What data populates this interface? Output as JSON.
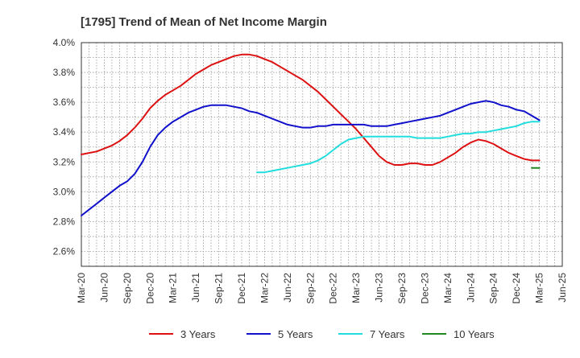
{
  "chart_data": {
    "type": "line",
    "title": "[1795]  Trend of Mean of Net Income Margin",
    "xlabel": "",
    "ylabel": "",
    "x_ticks": [
      "Mar-20",
      "Jun-20",
      "Sep-20",
      "Dec-20",
      "Mar-21",
      "Jun-21",
      "Sep-21",
      "Dec-21",
      "Mar-22",
      "Jun-22",
      "Sep-22",
      "Dec-22",
      "Mar-23",
      "Jun-23",
      "Sep-23",
      "Dec-23",
      "Mar-24",
      "Jun-24",
      "Sep-24",
      "Dec-24",
      "Mar-25",
      "Jun-25"
    ],
    "y_ticks": [
      "2.6%",
      "2.8%",
      "3.0%",
      "3.2%",
      "3.4%",
      "3.6%",
      "3.8%",
      "4.0%"
    ],
    "y_tick_values": [
      2.6,
      2.8,
      3.0,
      3.2,
      3.4,
      3.6,
      3.8,
      4.0
    ],
    "ylim": [
      2.5,
      4.0
    ],
    "grid": true,
    "legend_position": "bottom",
    "series": [
      {
        "name": "3 Years",
        "color": "#dd1111",
        "x": [
          "Mar-20",
          "Apr-20",
          "May-20",
          "Jun-20",
          "Jul-20",
          "Aug-20",
          "Sep-20",
          "Oct-20",
          "Nov-20",
          "Dec-20",
          "Jan-21",
          "Feb-21",
          "Mar-21",
          "Apr-21",
          "May-21",
          "Jun-21",
          "Jul-21",
          "Aug-21",
          "Sep-21",
          "Oct-21",
          "Nov-21",
          "Dec-21",
          "Jan-22",
          "Feb-22",
          "Mar-22",
          "Apr-22",
          "May-22",
          "Jun-22",
          "Jul-22",
          "Aug-22",
          "Sep-22",
          "Oct-22",
          "Nov-22",
          "Dec-22",
          "Jan-23",
          "Feb-23",
          "Mar-23",
          "Apr-23",
          "May-23",
          "Jun-23",
          "Jul-23",
          "Aug-23",
          "Sep-23",
          "Oct-23",
          "Nov-23",
          "Dec-23",
          "Jan-24",
          "Feb-24",
          "Mar-24",
          "Apr-24",
          "May-24",
          "Jun-24",
          "Jul-24",
          "Aug-24",
          "Sep-24",
          "Oct-24",
          "Nov-24",
          "Dec-24",
          "Jan-25",
          "Feb-25",
          "Mar-25"
        ],
        "values": [
          3.25,
          3.26,
          3.27,
          3.29,
          3.31,
          3.34,
          3.38,
          3.43,
          3.49,
          3.56,
          3.61,
          3.65,
          3.68,
          3.71,
          3.75,
          3.79,
          3.82,
          3.85,
          3.87,
          3.89,
          3.91,
          3.92,
          3.92,
          3.91,
          3.89,
          3.87,
          3.84,
          3.81,
          3.78,
          3.75,
          3.71,
          3.67,
          3.62,
          3.57,
          3.52,
          3.47,
          3.42,
          3.36,
          3.3,
          3.24,
          3.2,
          3.18,
          3.18,
          3.19,
          3.19,
          3.18,
          3.18,
          3.2,
          3.23,
          3.26,
          3.3,
          3.33,
          3.35,
          3.34,
          3.32,
          3.29,
          3.26,
          3.24,
          3.22,
          3.21,
          3.21
        ]
      },
      {
        "name": "5 Years",
        "color": "#1111cc",
        "x": [
          "Mar-20",
          "Apr-20",
          "May-20",
          "Jun-20",
          "Jul-20",
          "Aug-20",
          "Sep-20",
          "Oct-20",
          "Nov-20",
          "Dec-20",
          "Jan-21",
          "Feb-21",
          "Mar-21",
          "Apr-21",
          "May-21",
          "Jun-21",
          "Jul-21",
          "Aug-21",
          "Sep-21",
          "Oct-21",
          "Nov-21",
          "Dec-21",
          "Jan-22",
          "Feb-22",
          "Mar-22",
          "Apr-22",
          "May-22",
          "Jun-22",
          "Jul-22",
          "Aug-22",
          "Sep-22",
          "Oct-22",
          "Nov-22",
          "Dec-22",
          "Jan-23",
          "Feb-23",
          "Mar-23",
          "Apr-23",
          "May-23",
          "Jun-23",
          "Jul-23",
          "Aug-23",
          "Sep-23",
          "Oct-23",
          "Nov-23",
          "Dec-23",
          "Jan-24",
          "Feb-24",
          "Mar-24",
          "Apr-24",
          "May-24",
          "Jun-24",
          "Jul-24",
          "Aug-24",
          "Sep-24",
          "Oct-24",
          "Nov-24",
          "Dec-24",
          "Jan-25",
          "Feb-25",
          "Mar-25"
        ],
        "values": [
          2.84,
          2.88,
          2.92,
          2.96,
          3.0,
          3.04,
          3.07,
          3.12,
          3.2,
          3.3,
          3.38,
          3.43,
          3.47,
          3.5,
          3.53,
          3.55,
          3.57,
          3.58,
          3.58,
          3.58,
          3.57,
          3.56,
          3.54,
          3.53,
          3.51,
          3.49,
          3.47,
          3.45,
          3.44,
          3.43,
          3.43,
          3.44,
          3.44,
          3.45,
          3.45,
          3.45,
          3.45,
          3.45,
          3.44,
          3.44,
          3.44,
          3.45,
          3.46,
          3.47,
          3.48,
          3.49,
          3.5,
          3.51,
          3.53,
          3.55,
          3.57,
          3.59,
          3.6,
          3.61,
          3.6,
          3.58,
          3.57,
          3.55,
          3.54,
          3.51,
          3.48
        ]
      },
      {
        "name": "7 Years",
        "color": "#22dddd",
        "x": [
          "Feb-22",
          "Mar-22",
          "Apr-22",
          "May-22",
          "Jun-22",
          "Jul-22",
          "Aug-22",
          "Sep-22",
          "Oct-22",
          "Nov-22",
          "Dec-22",
          "Jan-23",
          "Feb-23",
          "Mar-23",
          "Apr-23",
          "May-23",
          "Jun-23",
          "Jul-23",
          "Aug-23",
          "Sep-23",
          "Oct-23",
          "Nov-23",
          "Dec-23",
          "Jan-24",
          "Feb-24",
          "Mar-24",
          "Apr-24",
          "May-24",
          "Jun-24",
          "Jul-24",
          "Aug-24",
          "Sep-24",
          "Oct-24",
          "Nov-24",
          "Dec-24",
          "Jan-25",
          "Feb-25",
          "Mar-25"
        ],
        "values": [
          3.13,
          3.13,
          3.14,
          3.15,
          3.16,
          3.17,
          3.18,
          3.19,
          3.21,
          3.24,
          3.28,
          3.32,
          3.35,
          3.36,
          3.37,
          3.37,
          3.37,
          3.37,
          3.37,
          3.37,
          3.37,
          3.36,
          3.36,
          3.36,
          3.36,
          3.37,
          3.38,
          3.39,
          3.39,
          3.4,
          3.4,
          3.41,
          3.42,
          3.43,
          3.44,
          3.46,
          3.47,
          3.47
        ]
      },
      {
        "name": "10 Years",
        "color": "#228822",
        "x": [
          "Feb-25",
          "Mar-25"
        ],
        "values": [
          3.16,
          3.16
        ]
      }
    ]
  }
}
